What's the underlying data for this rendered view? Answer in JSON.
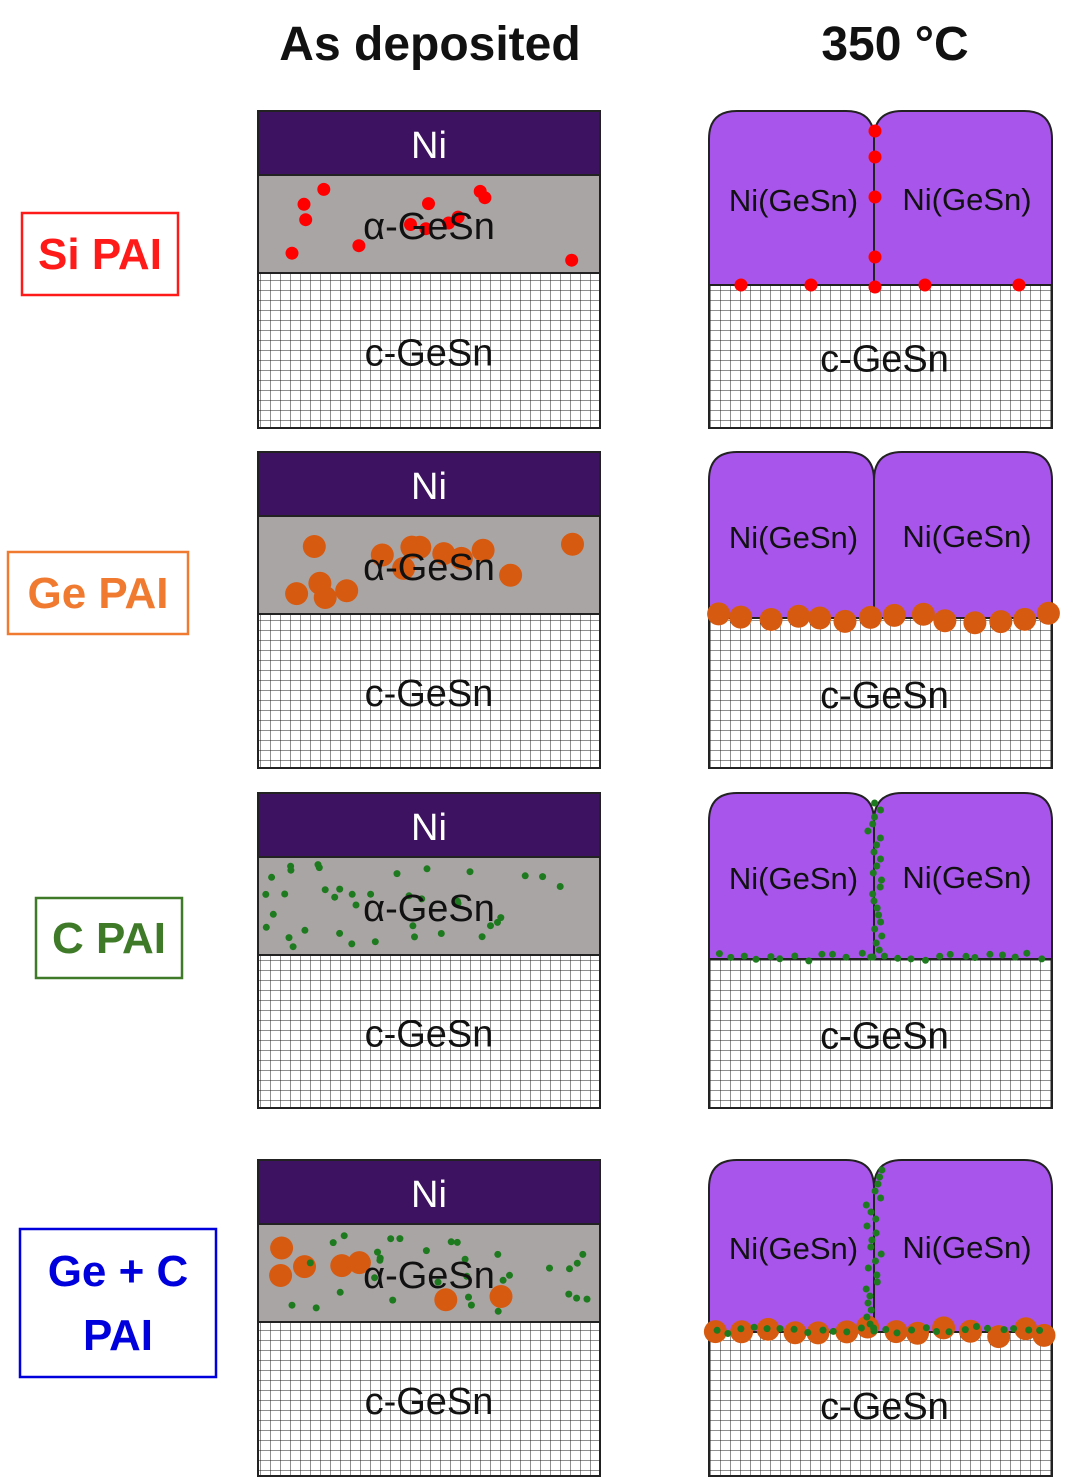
{
  "headers": {
    "as_deposited": "As deposited",
    "annealed": "350 °C"
  },
  "colors": {
    "ni": "#3d1260",
    "amorphous": "#aaa5a5",
    "silicide": "#a855ec",
    "grid_line": "#202020",
    "outline": "#222222",
    "si": "#ff0000",
    "ge": "#d65a10",
    "c": "#1e7a1e",
    "gec_label": "#0000dd"
  },
  "layers": {
    "ni": "Ni",
    "amorphous": "α-GeSn",
    "substrate": "c-GeSn",
    "silicide": "Ni(GeSn)"
  },
  "rows": [
    {
      "label_lines": [
        "Si PAI"
      ],
      "color": "#ff1a1a",
      "dopants": [
        "si"
      ]
    },
    {
      "label_lines": [
        "Ge PAI"
      ],
      "color": "#f07a30",
      "dopants": [
        "ge"
      ]
    },
    {
      "label_lines": [
        "C PAI"
      ],
      "color": "#3e7a28",
      "dopants": [
        "c"
      ]
    },
    {
      "label_lines": [
        "Ge + C",
        "PAI"
      ],
      "color": "#0000dd",
      "dopants": [
        "ge",
        "c"
      ]
    }
  ]
}
